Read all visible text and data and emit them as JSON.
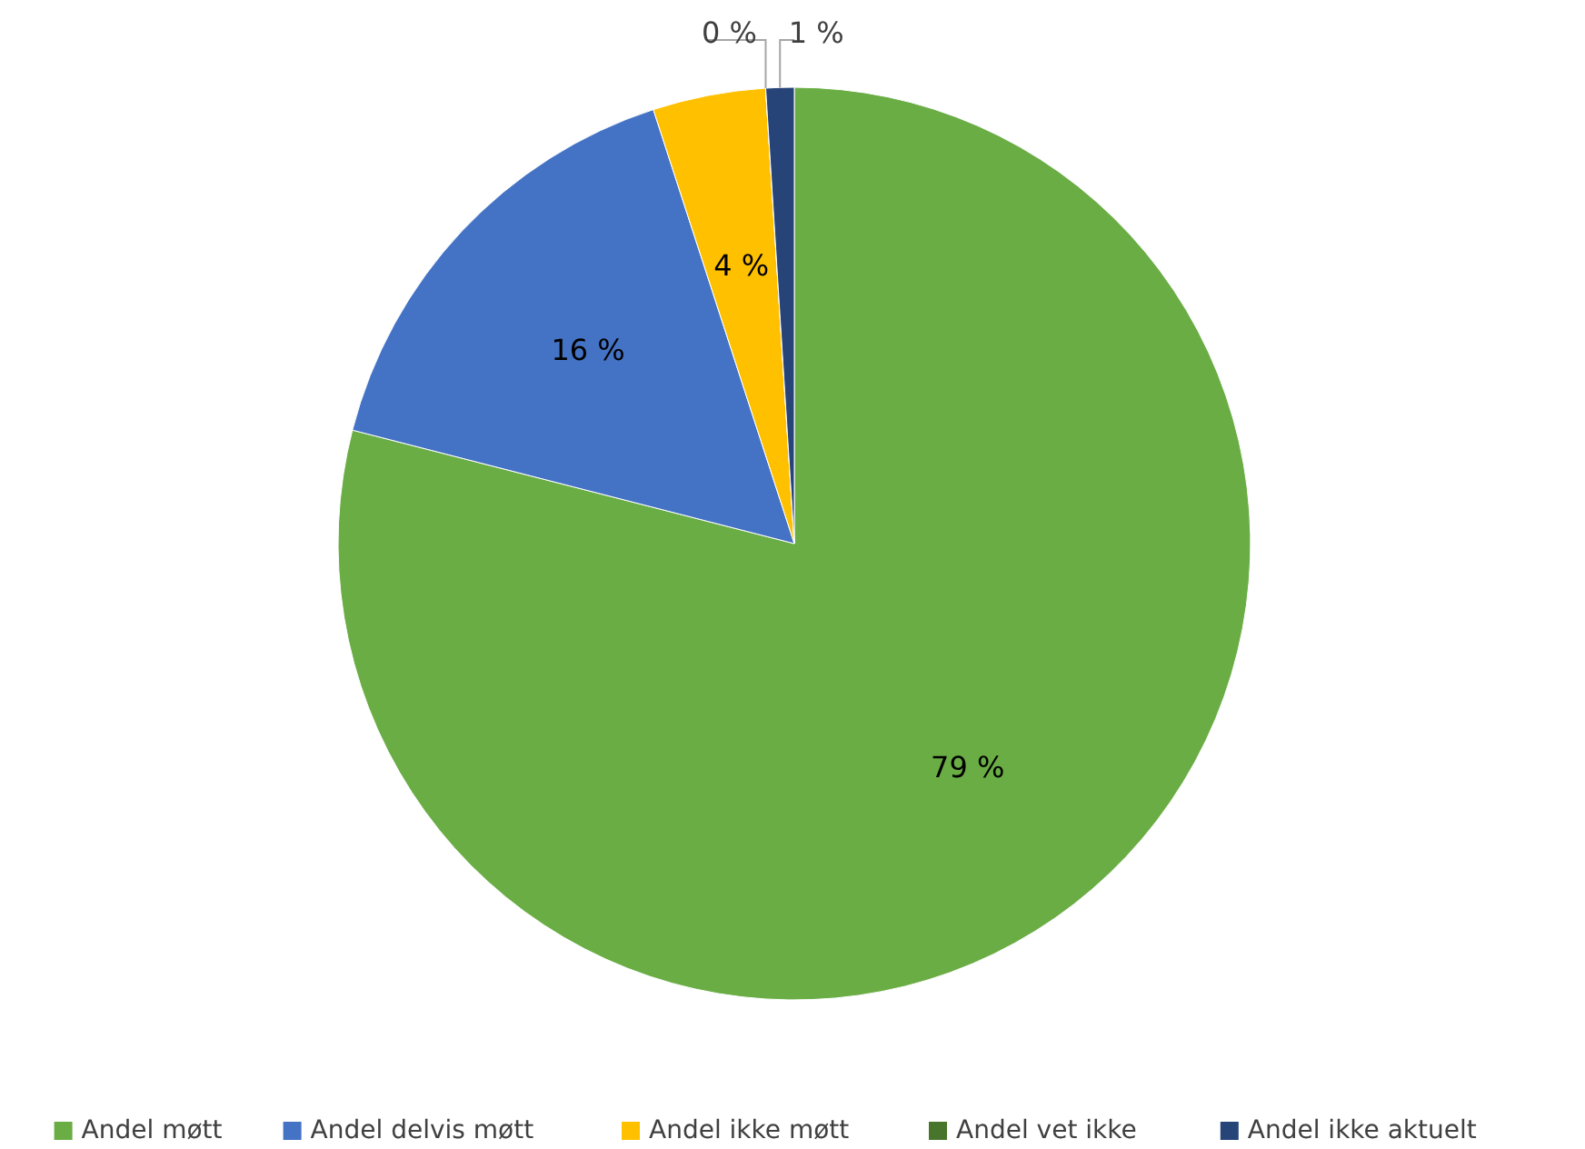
{
  "chart_data": {
    "type": "pie",
    "categories": [
      "Andel møtt",
      "Andel delvis møtt",
      "Andel ikke møtt",
      "Andel vet ikke",
      "Andel ikke aktuelt"
    ],
    "values": [
      79,
      16,
      4,
      0,
      1
    ],
    "colors": [
      "#6aad45",
      "#4472c4",
      "#ffc000",
      "#48752c",
      "#264478"
    ],
    "value_labels": [
      "79 %",
      "16 %",
      "4 %",
      "0 %",
      "1 %"
    ],
    "legend": "bottom"
  }
}
